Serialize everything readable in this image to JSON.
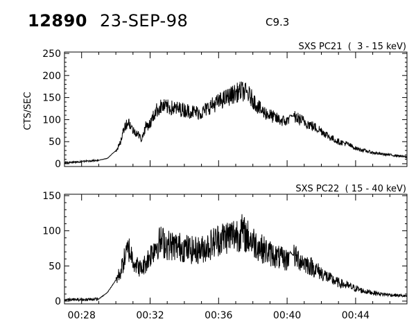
{
  "header": {
    "event_id": "12890",
    "date": "23-SEP-98",
    "flare_class": "C9.3"
  },
  "chart_data": [
    {
      "type": "line",
      "title": "SXS PC21  (  3 - 15 keV)",
      "ylabel": "CTS/SEC",
      "xlabel": "",
      "xlim": [
        "00:27:00",
        "00:47:00"
      ],
      "ylim": [
        0,
        250
      ],
      "yticks": [
        0,
        50,
        100,
        150,
        200,
        250
      ],
      "xtick_labels": [],
      "grid": false,
      "series": [
        {
          "x": [
            "00:27:00",
            "00:28:00",
            "00:29:00",
            "00:29:30",
            "00:30:00",
            "00:30:15",
            "00:30:30",
            "00:30:45",
            "00:31:00",
            "00:31:15",
            "00:31:30",
            "00:31:45",
            "00:32:00",
            "00:32:20",
            "00:32:40",
            "00:33:00",
            "00:33:30",
            "00:34:00",
            "00:34:30",
            "00:35:00",
            "00:35:30",
            "00:36:00",
            "00:36:30",
            "00:37:00",
            "00:37:20",
            "00:37:40",
            "00:38:00",
            "00:38:30",
            "00:39:00",
            "00:39:30",
            "00:40:00",
            "00:40:10",
            "00:40:30",
            "00:41:00",
            "00:41:30",
            "00:42:00",
            "00:42:30",
            "00:43:00",
            "00:43:30",
            "00:44:00",
            "00:44:30",
            "00:45:00",
            "00:45:30",
            "00:46:00",
            "00:46:30",
            "00:47:00"
          ],
          "y": [
            2,
            5,
            8,
            12,
            30,
            45,
            85,
            95,
            75,
            70,
            55,
            85,
            90,
            120,
            130,
            128,
            125,
            122,
            118,
            115,
            130,
            140,
            150,
            160,
            165,
            160,
            145,
            120,
            110,
            100,
            95,
            110,
            105,
            95,
            85,
            75,
            60,
            50,
            45,
            35,
            30,
            25,
            22,
            20,
            18,
            15
          ]
        }
      ]
    },
    {
      "type": "line",
      "title": "SXS PC22  ( 15 - 40 keV)",
      "ylabel": "",
      "xlabel": "",
      "xlim": [
        "00:27:00",
        "00:47:00"
      ],
      "ylim": [
        0,
        150
      ],
      "yticks": [
        0,
        50,
        100,
        150
      ],
      "xtick_labels": [
        "00:28",
        "00:32",
        "00:36",
        "00:40",
        "00:44"
      ],
      "grid": false,
      "series": [
        {
          "x": [
            "00:27:00",
            "00:28:00",
            "00:29:00",
            "00:29:30",
            "00:30:00",
            "00:30:15",
            "00:30:30",
            "00:30:45",
            "00:31:00",
            "00:31:15",
            "00:31:30",
            "00:31:45",
            "00:32:00",
            "00:32:20",
            "00:32:40",
            "00:33:00",
            "00:33:30",
            "00:34:00",
            "00:34:30",
            "00:35:00",
            "00:35:30",
            "00:36:00",
            "00:36:30",
            "00:37:00",
            "00:37:20",
            "00:37:40",
            "00:38:00",
            "00:38:30",
            "00:39:00",
            "00:39:30",
            "00:40:00",
            "00:40:10",
            "00:40:30",
            "00:41:00",
            "00:41:30",
            "00:42:00",
            "00:42:30",
            "00:43:00",
            "00:43:30",
            "00:44:00",
            "00:44:30",
            "00:45:00",
            "00:45:30",
            "00:46:00",
            "00:46:30",
            "00:47:00"
          ],
          "y": [
            2,
            2,
            3,
            12,
            30,
            40,
            60,
            75,
            60,
            50,
            45,
            55,
            65,
            80,
            85,
            80,
            78,
            76,
            72,
            73,
            80,
            88,
            92,
            95,
            98,
            92,
            85,
            75,
            68,
            62,
            58,
            70,
            62,
            55,
            48,
            40,
            32,
            26,
            22,
            18,
            14,
            12,
            10,
            9,
            8,
            7
          ]
        }
      ]
    }
  ]
}
